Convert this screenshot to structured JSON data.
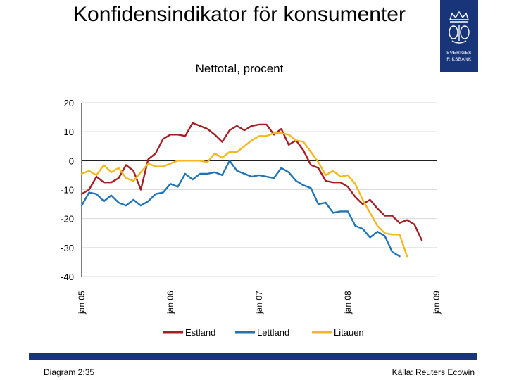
{
  "slide": {
    "title": "Konfidensindikator för konsumenter",
    "diagram_label": "Diagram 2:35",
    "source": "Källa: Reuters Ecowin"
  },
  "logo": {
    "line1": "SVERIGES",
    "line2": "RIKSBANK"
  },
  "colors": {
    "brand": "#18357a",
    "estland": "#a31f24",
    "lettland": "#1f73b7",
    "litauen": "#f2b81d"
  },
  "chart_data": {
    "type": "line",
    "title": "Konfidensindikator för konsumenter",
    "subtitle": "Nettotal, procent",
    "ylim": [
      -40,
      20
    ],
    "yticks": [
      20,
      10,
      0,
      -10,
      -20,
      -30,
      -40
    ],
    "ytick_labels": [
      "20",
      "10",
      "0",
      "-10",
      "-20",
      "-30",
      "-40"
    ],
    "x_start": 2005.0,
    "xlim": [
      2005.0,
      2009.0
    ],
    "xticks": [
      2005,
      2006,
      2007,
      2008,
      2009
    ],
    "xtick_labels": [
      "jan 05",
      "jan 06",
      "jan 07",
      "jan 08",
      "jan 09"
    ],
    "grid": "horizontal",
    "legend_position": "bottom",
    "series": [
      {
        "name": "Estland",
        "color": "#a31f24",
        "values": [
          -11.5,
          -10,
          -5.5,
          -7.5,
          -7.5,
          -6,
          -1.5,
          -3.5,
          -10,
          0.5,
          2.5,
          7.5,
          9,
          9,
          8.5,
          13,
          12,
          11,
          9,
          6.5,
          10.5,
          12,
          10.5,
          12,
          12.5,
          12.5,
          9,
          11,
          5.5,
          7,
          3.5,
          -1.5,
          -2.5,
          -7,
          -7.5,
          -7.5,
          -9,
          -12.5,
          -15,
          -13.5,
          -16.5,
          -19,
          -19,
          -21.5,
          -20.5,
          -22,
          -27.5
        ]
      },
      {
        "name": "Lettland",
        "color": "#1f73b7",
        "values": [
          -15.5,
          -11,
          -11.5,
          -14,
          -12,
          -14.5,
          -15.5,
          -13.5,
          -15.5,
          -14,
          -11.5,
          -11,
          -8,
          -9,
          -4.5,
          -6.5,
          -4.5,
          -4.5,
          -4,
          -5,
          0,
          -3.5,
          -4.5,
          -5.5,
          -5,
          -5.5,
          -6,
          -2.5,
          -4,
          -7,
          -8.5,
          -9.5,
          -15,
          -14.5,
          -18,
          -17.5,
          -17.5,
          -22.5,
          -23.5,
          -26.5,
          -24.5,
          -26,
          -31.5,
          -33
        ]
      },
      {
        "name": "Litauen",
        "color": "#f2b81d",
        "values": [
          -4.5,
          -3.5,
          -5,
          -1.5,
          -4,
          -2.5,
          -6,
          -7,
          -4,
          -1,
          -2,
          -2,
          -1,
          0,
          0,
          0,
          0,
          -0.5,
          2.5,
          1,
          3,
          3,
          5,
          7,
          8.5,
          8.5,
          9.5,
          9.5,
          9,
          7,
          6.5,
          3,
          -0.5,
          -5,
          -3.5,
          -5.5,
          -5,
          -8,
          -13.5,
          -18,
          -22.5,
          -25,
          -25.5,
          -25.5,
          -33
        ]
      }
    ]
  }
}
